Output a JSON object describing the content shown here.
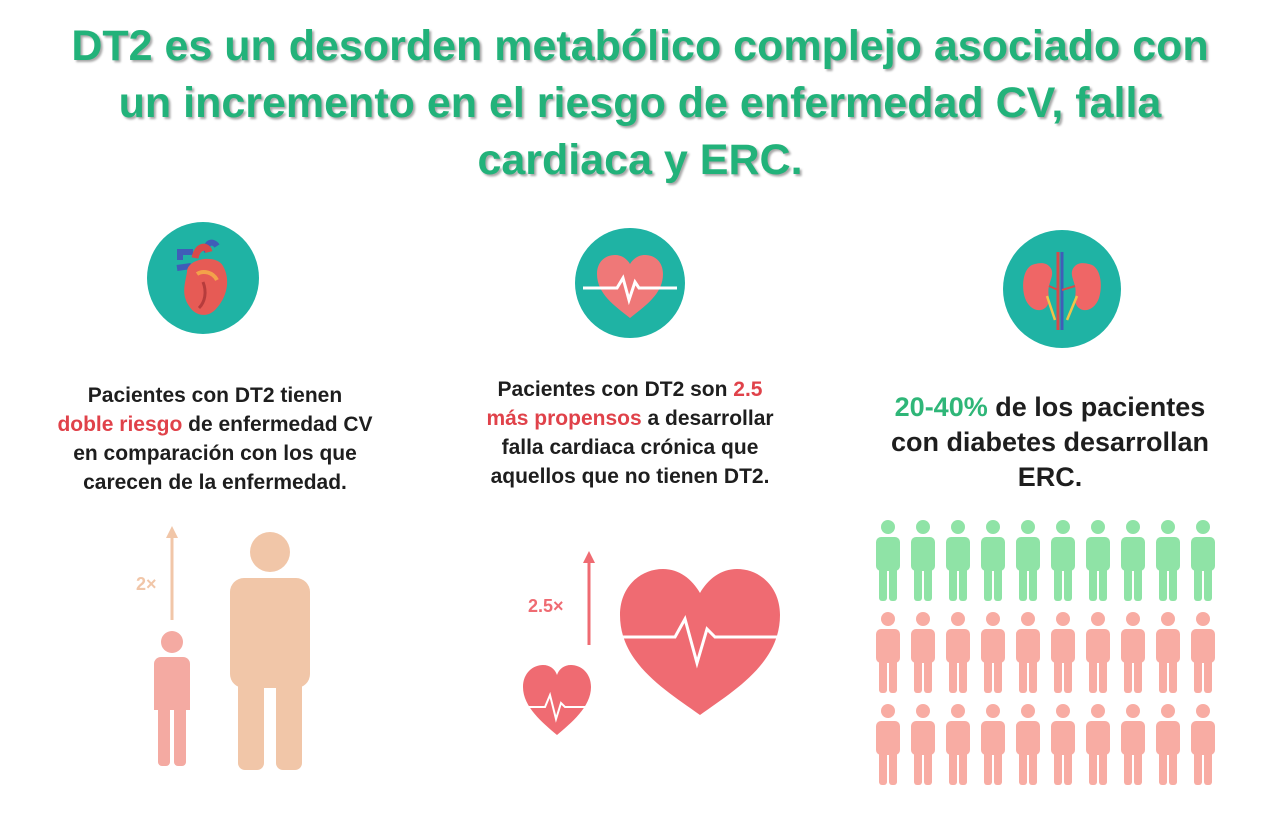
{
  "colors": {
    "title_green": "#22b27a",
    "teal": "#1fb3a4",
    "red_text": "#e0424a",
    "green_text": "#2fb678",
    "peach": "#f1c6a8",
    "pink": "#f4aaa2",
    "heart_red": "#ef6b72",
    "figure_green": "#8fe3a6",
    "figure_pink": "#f8aca3"
  },
  "title": {
    "line1": "DT2 es un desorden metabólico complejo asociado con",
    "line2": "un incremento en el riesgo de enfermedad CV, falla",
    "line3": "cardiaca y ERC."
  },
  "icons": {
    "card1": "anatomical-heart-icon",
    "card2": "heartbeat-heart-icon",
    "card3": "kidneys-icon"
  },
  "card1": {
    "l1": "Pacientes con DT2 tienen",
    "l2_highlight": "doble riesgo",
    "l2_rest": " de enfermedad CV",
    "l3": "en comparación con los que",
    "l4": "carecen de la enfermedad.",
    "multiplier": "2×"
  },
  "card2": {
    "l1_start": "Pacientes con DT2 son ",
    "l1_highlight": "2.5",
    "l2_highlight": "más propensos",
    "l2_rest": " a desarrollar",
    "l3": "falla cardiaca crónica que",
    "l4": "aquellos que no tienen DT2.",
    "multiplier": "2.5×"
  },
  "card3": {
    "l1_highlight": "20-40%",
    "l1_rest": " de los pacientes",
    "l2": "con diabetes desarrollan",
    "l3": "ERC.",
    "figure_rows": 3,
    "figure_cols": 10,
    "highlighted_rows": 1
  }
}
